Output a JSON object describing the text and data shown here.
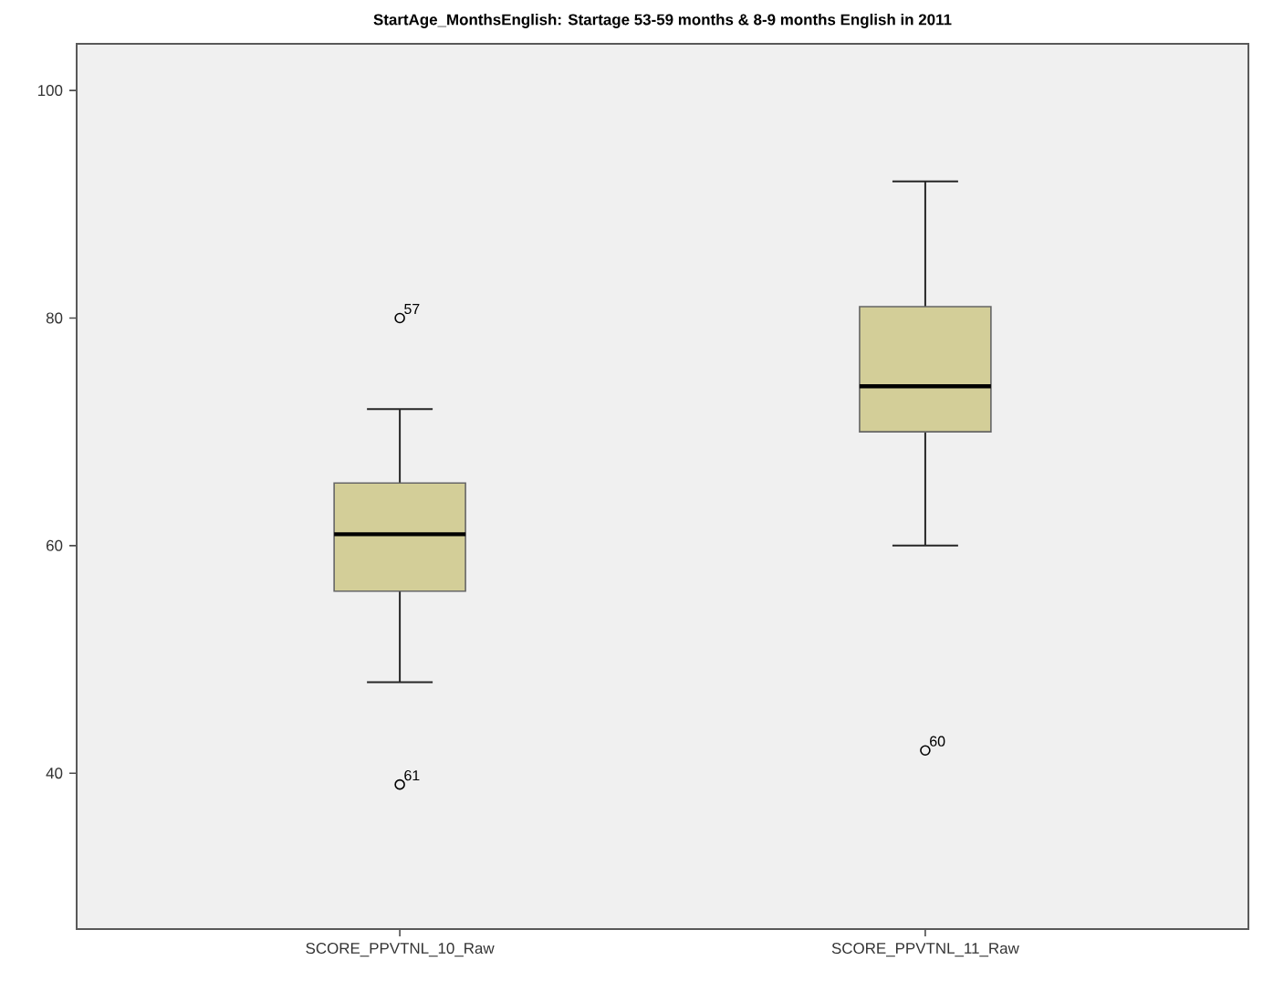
{
  "chart_data": {
    "type": "box",
    "title": "StartAge_MonthsEnglish: Startage 53-59 months & 8-9 months English in 2011",
    "categories": [
      "SCORE_PPVTNL_10_Raw",
      "SCORE_PPVTNL_11_Raw"
    ],
    "boxes": [
      {
        "low": 48,
        "q1": 56,
        "median": 61,
        "q3": 65.5,
        "high": 72
      },
      {
        "low": 60,
        "q1": 70,
        "median": 74,
        "q3": 81,
        "high": 92
      }
    ],
    "color": "#d3ce98",
    "series": [
      {
        "type": "scatter",
        "x": [
          "SCORE_PPVTNL_10_Raw",
          "SCORE_PPVTNL_10_Raw",
          "SCORE_PPVTNL_11_Raw"
        ],
        "values": [
          80,
          39,
          42
        ],
        "color": "#000000",
        "marker": "circle"
      }
    ],
    "annotations": [
      {
        "text": "57",
        "x": "SCORE_PPVTNL_10_Raw",
        "y": 80
      },
      {
        "text": "61",
        "x": "SCORE_PPVTNL_10_Raw",
        "y": 39
      },
      {
        "text": "60",
        "x": "SCORE_PPVTNL_11_Raw",
        "y": 42
      }
    ],
    "ylim": [
      26.3,
      104.1
    ],
    "yticks": [
      40,
      60,
      80,
      100
    ],
    "grid": false
  }
}
